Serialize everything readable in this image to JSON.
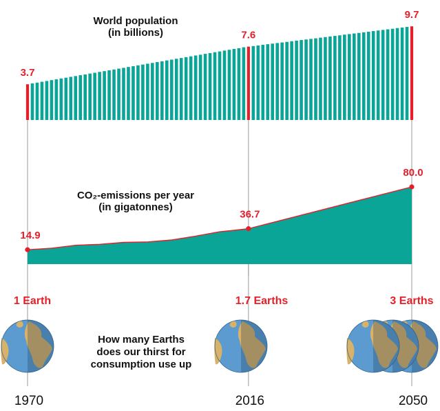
{
  "chart_data": [
    {
      "type": "bar",
      "title": "World population",
      "subtitle": "(in billions)",
      "x": [
        1970,
        1971,
        1972,
        1973,
        1974,
        1975,
        1976,
        1977,
        1978,
        1979,
        1980,
        1981,
        1982,
        1983,
        1984,
        1985,
        1986,
        1987,
        1988,
        1989,
        1990,
        1991,
        1992,
        1993,
        1994,
        1995,
        1996,
        1997,
        1998,
        1999,
        2000,
        2001,
        2002,
        2003,
        2004,
        2005,
        2006,
        2007,
        2008,
        2009,
        2010,
        2011,
        2012,
        2013,
        2014,
        2015,
        2016,
        2017,
        2018,
        2019,
        2020,
        2021,
        2022,
        2023,
        2024,
        2025,
        2026,
        2027,
        2028,
        2029,
        2030,
        2031,
        2032,
        2033,
        2034,
        2035,
        2036,
        2037,
        2038,
        2039,
        2040,
        2041,
        2042,
        2043,
        2044,
        2045,
        2046,
        2047,
        2048,
        2049,
        2050
      ],
      "values": [
        3.7,
        3.79,
        3.87,
        3.96,
        4.04,
        4.13,
        4.21,
        4.3,
        4.38,
        4.47,
        4.55,
        4.64,
        4.72,
        4.81,
        4.89,
        4.98,
        5.06,
        5.15,
        5.23,
        5.32,
        5.4,
        5.49,
        5.57,
        5.66,
        5.74,
        5.83,
        5.91,
        6,
        6.08,
        6.17,
        6.25,
        6.34,
        6.42,
        6.51,
        6.59,
        6.68,
        6.76,
        6.85,
        6.93,
        7.02,
        7.1,
        7.19,
        7.27,
        7.36,
        7.44,
        7.53,
        7.6,
        7.66,
        7.72,
        7.79,
        7.85,
        7.91,
        7.97,
        8.03,
        8.09,
        8.16,
        8.22,
        8.28,
        8.34,
        8.4,
        8.46,
        8.53,
        8.59,
        8.65,
        8.71,
        8.77,
        8.84,
        8.9,
        8.96,
        9.02,
        9.08,
        9.14,
        9.21,
        9.27,
        9.33,
        9.39,
        9.45,
        9.52,
        9.58,
        9.64,
        9.7
      ],
      "color": "#0aa596",
      "highlight_color": "#e3202a",
      "xlim": [
        1970,
        2050
      ],
      "xticks": [
        1970,
        2016,
        2050
      ],
      "ylim": [
        0,
        10
      ]
    },
    {
      "type": "area",
      "title": "CO₂-emissions per year",
      "subtitle": "(in gigatonnes)",
      "x": [
        1970,
        1975,
        1980,
        1985,
        1990,
        1995,
        2000,
        2005,
        2010,
        2013,
        2016,
        2050
      ],
      "values": [
        14.9,
        16.5,
        19.5,
        20.5,
        22.5,
        23,
        25,
        29,
        33.5,
        35,
        36.7,
        80
      ],
      "value_labels": [
        null,
        null,
        null,
        null,
        null,
        null,
        null,
        null,
        null,
        null,
        null,
        "80.0"
      ],
      "color": "#0aa596",
      "line_color": "#e3202a",
      "xlim": [
        1970,
        2050
      ],
      "xticks": [
        1970,
        2016,
        2050
      ],
      "ylim": [
        0,
        100
      ]
    }
  ],
  "earths": {
    "labels": [
      "1 Earth",
      "1.7 Earths",
      "3 Earths"
    ],
    "values": [
      1,
      1.7,
      3
    ],
    "caption": [
      "How many Earths",
      "does our thirst for",
      "consumption use up"
    ]
  }
}
